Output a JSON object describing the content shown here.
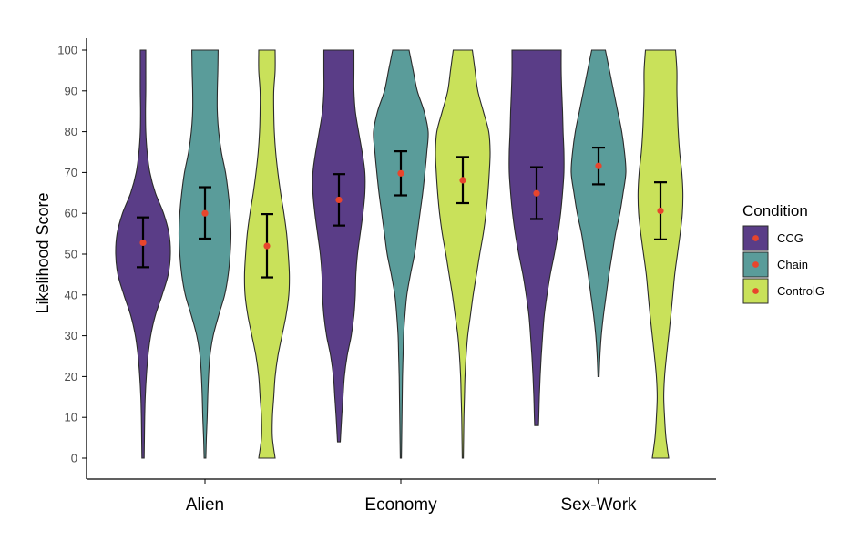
{
  "chart_data": {
    "type": "violin",
    "ylabel": "Likelihood Score",
    "ylim": [
      0,
      100
    ],
    "yticks": [
      0,
      10,
      20,
      30,
      40,
      50,
      60,
      70,
      80,
      90,
      100
    ],
    "categories": [
      "Alien",
      "Economy",
      "Sex-Work"
    ],
    "legend": {
      "title": "Condition",
      "placement": "right",
      "entries": [
        {
          "name": "CCG",
          "color": "#5a3d87"
        },
        {
          "name": "Chain",
          "color": "#5a9c9a"
        },
        {
          "name": "ControlG",
          "color": "#c9e15a"
        }
      ]
    },
    "point_color": "#e8452c",
    "groups": [
      {
        "category": "Alien",
        "violins": [
          {
            "condition": "CCG",
            "range": [
              0,
              100
            ],
            "mean": 52.8,
            "ci": [
              46.8,
              59.0
            ],
            "density": [
              [
                0,
                0.04
              ],
              [
                5,
                0.05
              ],
              [
                10,
                0.06
              ],
              [
                15,
                0.08
              ],
              [
                20,
                0.12
              ],
              [
                25,
                0.18
              ],
              [
                30,
                0.28
              ],
              [
                35,
                0.45
              ],
              [
                40,
                0.7
              ],
              [
                45,
                0.92
              ],
              [
                50,
                1.0
              ],
              [
                55,
                0.95
              ],
              [
                60,
                0.75
              ],
              [
                65,
                0.45
              ],
              [
                70,
                0.25
              ],
              [
                75,
                0.15
              ],
              [
                80,
                0.1
              ],
              [
                85,
                0.09
              ],
              [
                90,
                0.1
              ],
              [
                95,
                0.1
              ],
              [
                100,
                0.1
              ]
            ]
          },
          {
            "condition": "Chain",
            "range": [
              0,
              100
            ],
            "mean": 60.0,
            "ci": [
              53.8,
              66.4
            ],
            "density": [
              [
                0,
                0.03
              ],
              [
                5,
                0.05
              ],
              [
                10,
                0.08
              ],
              [
                15,
                0.1
              ],
              [
                20,
                0.13
              ],
              [
                25,
                0.18
              ],
              [
                30,
                0.3
              ],
              [
                35,
                0.5
              ],
              [
                40,
                0.72
              ],
              [
                45,
                0.85
              ],
              [
                50,
                0.92
              ],
              [
                55,
                0.95
              ],
              [
                60,
                0.92
              ],
              [
                65,
                0.85
              ],
              [
                70,
                0.75
              ],
              [
                75,
                0.6
              ],
              [
                80,
                0.5
              ],
              [
                85,
                0.45
              ],
              [
                90,
                0.45
              ],
              [
                95,
                0.47
              ],
              [
                100,
                0.48
              ]
            ]
          },
          {
            "condition": "ControlG",
            "range": [
              0,
              100
            ],
            "mean": 52.0,
            "ci": [
              44.3,
              59.8
            ],
            "density": [
              [
                0,
                0.3
              ],
              [
                5,
                0.2
              ],
              [
                10,
                0.2
              ],
              [
                15,
                0.25
              ],
              [
                20,
                0.3
              ],
              [
                25,
                0.4
              ],
              [
                30,
                0.55
              ],
              [
                35,
                0.7
              ],
              [
                40,
                0.8
              ],
              [
                45,
                0.82
              ],
              [
                50,
                0.78
              ],
              [
                55,
                0.72
              ],
              [
                60,
                0.62
              ],
              [
                65,
                0.5
              ],
              [
                70,
                0.4
              ],
              [
                75,
                0.32
              ],
              [
                80,
                0.27
              ],
              [
                85,
                0.25
              ],
              [
                90,
                0.25
              ],
              [
                95,
                0.3
              ],
              [
                100,
                0.3
              ]
            ]
          }
        ]
      },
      {
        "category": "Economy",
        "violins": [
          {
            "condition": "CCG",
            "range": [
              4,
              100
            ],
            "mean": 63.3,
            "ci": [
              57.0,
              69.6
            ],
            "density": [
              [
                4,
                0.05
              ],
              [
                10,
                0.1
              ],
              [
                15,
                0.15
              ],
              [
                20,
                0.2
              ],
              [
                25,
                0.3
              ],
              [
                30,
                0.45
              ],
              [
                35,
                0.55
              ],
              [
                40,
                0.6
              ],
              [
                45,
                0.62
              ],
              [
                50,
                0.68
              ],
              [
                55,
                0.78
              ],
              [
                60,
                0.88
              ],
              [
                65,
                0.95
              ],
              [
                70,
                0.95
              ],
              [
                75,
                0.85
              ],
              [
                80,
                0.72
              ],
              [
                85,
                0.6
              ],
              [
                90,
                0.55
              ],
              [
                95,
                0.55
              ],
              [
                100,
                0.55
              ]
            ]
          },
          {
            "condition": "Chain",
            "range": [
              0,
              100
            ],
            "mean": 69.8,
            "ci": [
              64.4,
              75.2
            ],
            "density": [
              [
                0,
                0.02
              ],
              [
                5,
                0.03
              ],
              [
                10,
                0.04
              ],
              [
                15,
                0.05
              ],
              [
                20,
                0.06
              ],
              [
                25,
                0.08
              ],
              [
                30,
                0.1
              ],
              [
                35,
                0.15
              ],
              [
                40,
                0.22
              ],
              [
                45,
                0.35
              ],
              [
                50,
                0.5
              ],
              [
                55,
                0.6
              ],
              [
                60,
                0.7
              ],
              [
                65,
                0.8
              ],
              [
                70,
                0.88
              ],
              [
                75,
                0.95
              ],
              [
                80,
                1.0
              ],
              [
                85,
                0.85
              ],
              [
                90,
                0.6
              ],
              [
                95,
                0.45
              ],
              [
                100,
                0.3
              ]
            ]
          },
          {
            "condition": "ControlG",
            "range": [
              0,
              100
            ],
            "mean": 68.1,
            "ci": [
              62.5,
              73.8
            ],
            "density": [
              [
                0,
                0.02
              ],
              [
                5,
                0.03
              ],
              [
                10,
                0.04
              ],
              [
                15,
                0.06
              ],
              [
                20,
                0.08
              ],
              [
                25,
                0.12
              ],
              [
                30,
                0.18
              ],
              [
                35,
                0.28
              ],
              [
                40,
                0.38
              ],
              [
                45,
                0.5
              ],
              [
                50,
                0.62
              ],
              [
                55,
                0.75
              ],
              [
                60,
                0.85
              ],
              [
                65,
                0.92
              ],
              [
                70,
                0.97
              ],
              [
                75,
                1.0
              ],
              [
                80,
                0.95
              ],
              [
                85,
                0.75
              ],
              [
                90,
                0.55
              ],
              [
                95,
                0.45
              ],
              [
                100,
                0.35
              ]
            ]
          }
        ]
      },
      {
        "category": "Sex-Work",
        "violins": [
          {
            "condition": "CCG",
            "range": [
              8,
              100
            ],
            "mean": 64.9,
            "ci": [
              58.6,
              71.3
            ],
            "density": [
              [
                8,
                0.07
              ],
              [
                10,
                0.08
              ],
              [
                15,
                0.1
              ],
              [
                20,
                0.13
              ],
              [
                25,
                0.17
              ],
              [
                30,
                0.22
              ],
              [
                35,
                0.28
              ],
              [
                40,
                0.38
              ],
              [
                45,
                0.5
              ],
              [
                50,
                0.65
              ],
              [
                55,
                0.78
              ],
              [
                60,
                0.88
              ],
              [
                65,
                0.95
              ],
              [
                70,
                1.0
              ],
              [
                75,
                1.0
              ],
              [
                80,
                0.97
              ],
              [
                85,
                0.95
              ],
              [
                90,
                0.92
              ],
              [
                95,
                0.9
              ],
              [
                100,
                0.9
              ]
            ]
          },
          {
            "condition": "Chain",
            "range": [
              20,
              100
            ],
            "mean": 71.6,
            "ci": [
              67.1,
              76.1
            ],
            "density": [
              [
                20,
                0.02
              ],
              [
                25,
                0.05
              ],
              [
                30,
                0.1
              ],
              [
                35,
                0.18
              ],
              [
                40,
                0.28
              ],
              [
                45,
                0.38
              ],
              [
                50,
                0.5
              ],
              [
                55,
                0.62
              ],
              [
                60,
                0.78
              ],
              [
                65,
                0.9
              ],
              [
                70,
                1.0
              ],
              [
                75,
                0.95
              ],
              [
                80,
                0.85
              ],
              [
                85,
                0.7
              ],
              [
                90,
                0.55
              ],
              [
                95,
                0.4
              ],
              [
                100,
                0.25
              ]
            ]
          },
          {
            "condition": "ControlG",
            "range": [
              0,
              100
            ],
            "mean": 60.6,
            "ci": [
              53.6,
              67.6
            ],
            "density": [
              [
                0,
                0.3
              ],
              [
                5,
                0.2
              ],
              [
                10,
                0.15
              ],
              [
                15,
                0.12
              ],
              [
                20,
                0.15
              ],
              [
                25,
                0.22
              ],
              [
                30,
                0.3
              ],
              [
                35,
                0.38
              ],
              [
                40,
                0.45
              ],
              [
                45,
                0.52
              ],
              [
                50,
                0.62
              ],
              [
                55,
                0.72
              ],
              [
                60,
                0.8
              ],
              [
                65,
                0.82
              ],
              [
                70,
                0.78
              ],
              [
                75,
                0.7
              ],
              [
                80,
                0.65
              ],
              [
                85,
                0.62
              ],
              [
                90,
                0.6
              ],
              [
                95,
                0.6
              ],
              [
                100,
                0.55
              ]
            ]
          }
        ]
      }
    ]
  }
}
